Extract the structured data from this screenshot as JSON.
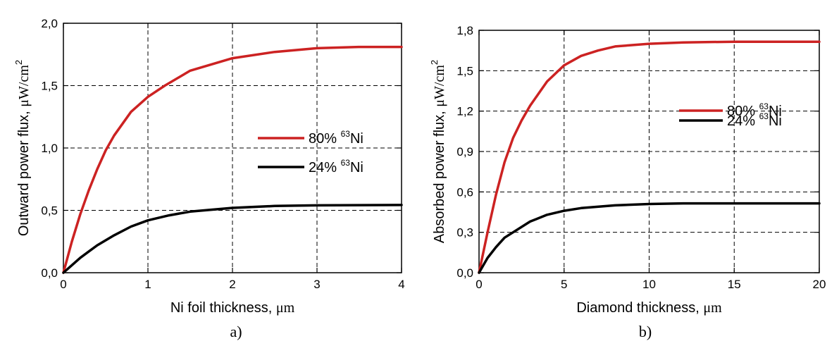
{
  "colors": {
    "red_series": "#cc2222",
    "black_series": "#000000"
  },
  "chart_data": [
    {
      "type": "line",
      "panel_label": "a)",
      "xlabel_main": "Ni foil thickness, ",
      "xlabel_unit": "μm",
      "ylabel_main": "Outward power flux, ",
      "ylabel_unit": "μW/cm",
      "ylabel_exp": "2",
      "xlim": [
        0,
        4
      ],
      "ylim": [
        0.0,
        2.0
      ],
      "x_ticks": [
        0,
        1,
        2,
        3,
        4
      ],
      "x_tick_labels": [
        "0",
        "1",
        "2",
        "3",
        "4"
      ],
      "y_ticks": [
        0.0,
        0.5,
        1.0,
        1.5,
        2.0
      ],
      "y_tick_labels": [
        "0,0",
        "0,5",
        "1,0",
        "1,5",
        "2,0"
      ],
      "grid": true,
      "legend_position": "right-middle",
      "series": [
        {
          "name_prefix": "80% ",
          "name_sup": "63",
          "name_suffix": "Ni",
          "color": "#cc2222",
          "x": [
            0,
            0.1,
            0.2,
            0.3,
            0.4,
            0.5,
            0.6,
            0.8,
            1.0,
            1.2,
            1.5,
            2.0,
            2.5,
            3.0,
            3.5,
            4.0
          ],
          "y": [
            0.0,
            0.25,
            0.47,
            0.66,
            0.83,
            0.98,
            1.1,
            1.29,
            1.41,
            1.5,
            1.62,
            1.72,
            1.77,
            1.8,
            1.81,
            1.81
          ]
        },
        {
          "name_prefix": "24% ",
          "name_sup": "63",
          "name_suffix": "Ni",
          "color": "#000000",
          "x": [
            0,
            0.2,
            0.4,
            0.6,
            0.8,
            1.0,
            1.25,
            1.5,
            2.0,
            2.5,
            3.0,
            3.5,
            4.0
          ],
          "y": [
            0.0,
            0.12,
            0.22,
            0.3,
            0.37,
            0.42,
            0.46,
            0.49,
            0.52,
            0.535,
            0.54,
            0.542,
            0.543
          ]
        }
      ]
    },
    {
      "type": "line",
      "panel_label": "b)",
      "xlabel_main": "Diamond thickness, ",
      "xlabel_unit": "μm",
      "ylabel_main": "Absorbed power flux, ",
      "ylabel_unit": "μW/cm",
      "ylabel_exp": "2",
      "xlim": [
        0,
        20
      ],
      "ylim": [
        0.0,
        1.8
      ],
      "x_ticks": [
        0,
        5,
        10,
        15,
        20
      ],
      "x_tick_labels": [
        "0",
        "5",
        "10",
        "15",
        "20"
      ],
      "y_ticks": [
        0.0,
        0.3,
        0.6,
        0.9,
        1.2,
        1.5,
        1.8
      ],
      "y_tick_labels": [
        "0,0",
        "0,3",
        "0,6",
        "0,9",
        "1,2",
        "1,5",
        "1,8"
      ],
      "grid": true,
      "legend_position": "right-upper",
      "series": [
        {
          "name_prefix": "80% ",
          "name_sup": "63",
          "name_suffix": "Ni",
          "color": "#cc2222",
          "x": [
            0,
            0.5,
            1,
            1.5,
            2,
            2.5,
            3,
            4,
            5,
            6,
            7,
            8,
            10,
            12,
            15,
            20
          ],
          "y": [
            0.0,
            0.3,
            0.58,
            0.82,
            1.0,
            1.13,
            1.24,
            1.42,
            1.54,
            1.61,
            1.65,
            1.68,
            1.7,
            1.71,
            1.715,
            1.715
          ]
        },
        {
          "name_prefix": "24% ",
          "name_sup": "63",
          "name_suffix": "Ni",
          "color": "#000000",
          "x": [
            0,
            0.5,
            1,
            1.5,
            2,
            3,
            4,
            5,
            6,
            8,
            10,
            12,
            15,
            20
          ],
          "y": [
            0.0,
            0.11,
            0.19,
            0.26,
            0.3,
            0.38,
            0.43,
            0.46,
            0.48,
            0.5,
            0.51,
            0.515,
            0.515,
            0.515
          ]
        }
      ]
    }
  ]
}
